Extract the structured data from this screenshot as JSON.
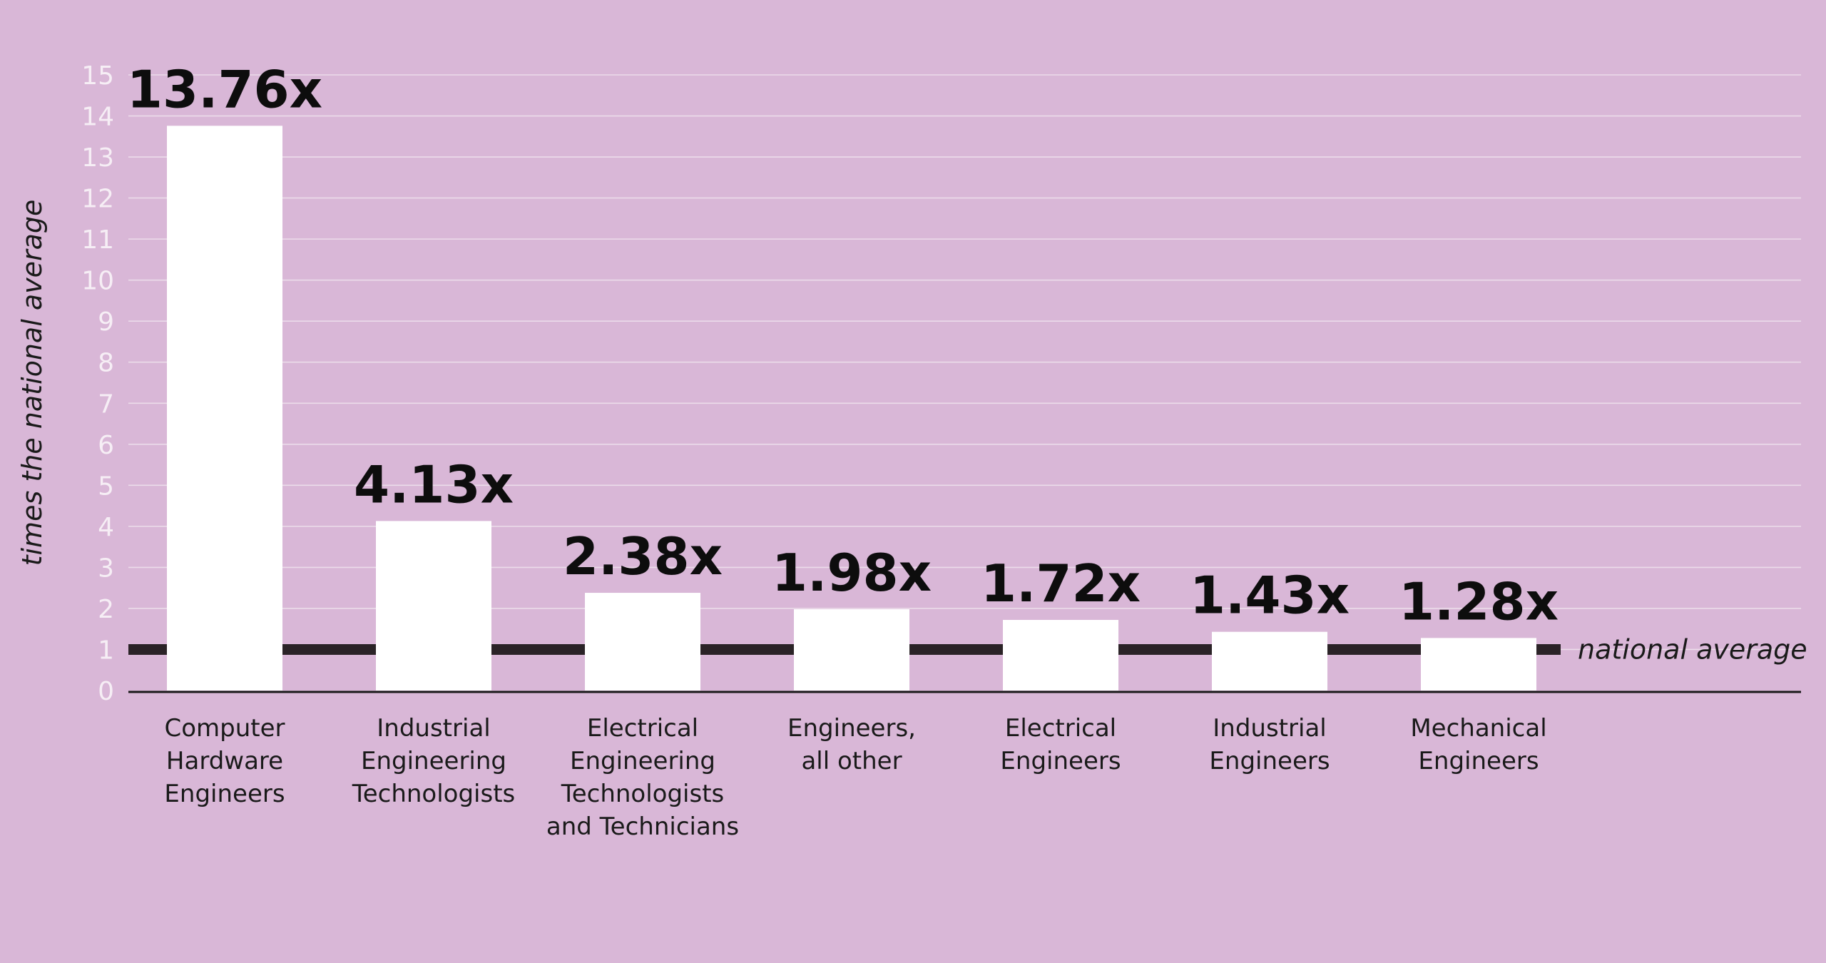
{
  "chart_data": {
    "type": "bar",
    "categories": [
      [
        "Computer",
        "Hardware",
        "Engineers"
      ],
      [
        "Industrial",
        "Engineering",
        "Technologists"
      ],
      [
        "Electrical",
        "Engineering",
        "Technologists",
        "and Technicians"
      ],
      [
        "Engineers,",
        "all other"
      ],
      [
        "Electrical",
        "Engineers"
      ],
      [
        "Industrial",
        "Engineers"
      ],
      [
        "Mechanical",
        "Engineers"
      ]
    ],
    "values": [
      13.76,
      4.13,
      2.38,
      1.98,
      1.72,
      1.43,
      1.28
    ],
    "value_labels": [
      "13.76x",
      "4.13x",
      "2.38x",
      "1.98x",
      "1.72x",
      "1.43x",
      "1.28x"
    ],
    "ylabel": "times the national average",
    "ylim": [
      0,
      15
    ],
    "yticks": [
      "0",
      "1",
      "2",
      "3",
      "4",
      "5",
      "6",
      "7",
      "8",
      "9",
      "10",
      "11",
      "12",
      "13",
      "14",
      "15"
    ],
    "reference_line": {
      "value": 1,
      "label": "national average"
    },
    "grid": true,
    "colors": {
      "background": "#d9b7d7",
      "bar": "#ffffff",
      "reference_line": "#2b2327",
      "gridline": "#ecdcea"
    }
  }
}
